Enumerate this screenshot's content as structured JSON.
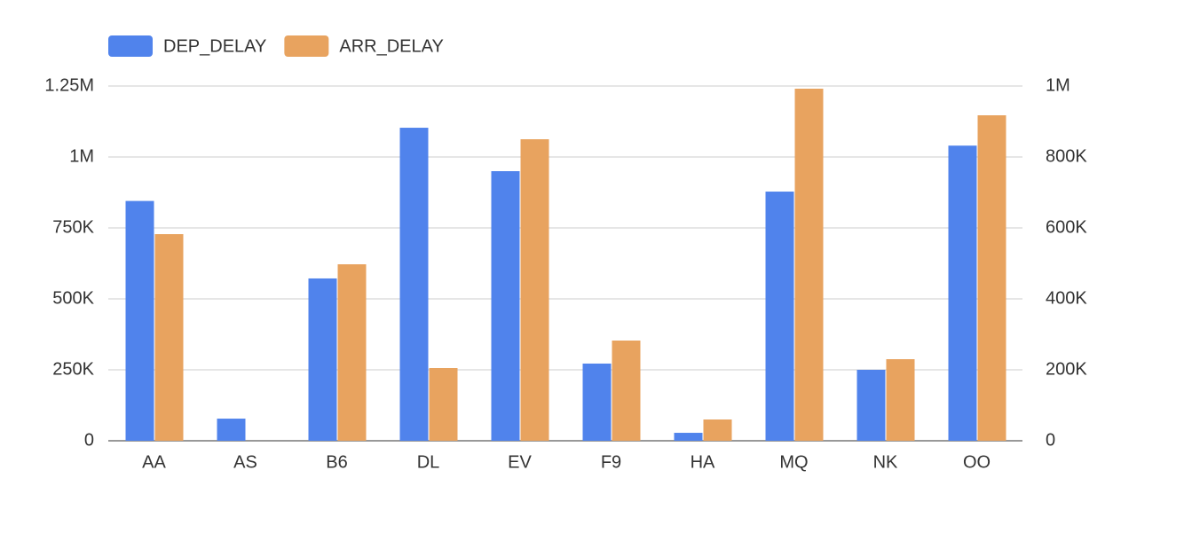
{
  "chart_data": {
    "type": "bar",
    "categories": [
      "AA",
      "AS",
      "B6",
      "DL",
      "EV",
      "F9",
      "HA",
      "MQ",
      "NK",
      "OO"
    ],
    "series": [
      {
        "name": "DEP_DELAY",
        "color": "#5083ec",
        "values": [
          845000,
          78000,
          572000,
          1103000,
          950000,
          272000,
          28000,
          878000,
          250000,
          1040000
        ]
      },
      {
        "name": "ARR_DELAY",
        "color": "#e8a35f",
        "axis": "y2",
        "values": [
          582500,
          0,
          497500,
          205000,
          850000,
          282500,
          60000,
          992500,
          230000,
          917500
        ]
      }
    ],
    "ylim": [
      0,
      1250000
    ],
    "yticks": [
      0,
      {
        "value": 250000,
        "label": "250K"
      },
      {
        "value": 500000,
        "label": "500K"
      },
      {
        "value": 750000,
        "label": "750K"
      },
      {
        "value": 1000000,
        "label": "1M"
      },
      {
        "value": 1250000,
        "label": "1.25M"
      }
    ],
    "y2lim": [
      0,
      1000000
    ],
    "y2ticks": [
      0,
      {
        "value": 200000,
        "label": "200K"
      },
      {
        "value": 400000,
        "label": "400K"
      },
      {
        "value": 600000,
        "label": "600K"
      },
      {
        "value": 800000,
        "label": "800K"
      },
      {
        "value": 1000000,
        "label": "1M"
      }
    ],
    "grid": true,
    "legend": "top"
  }
}
